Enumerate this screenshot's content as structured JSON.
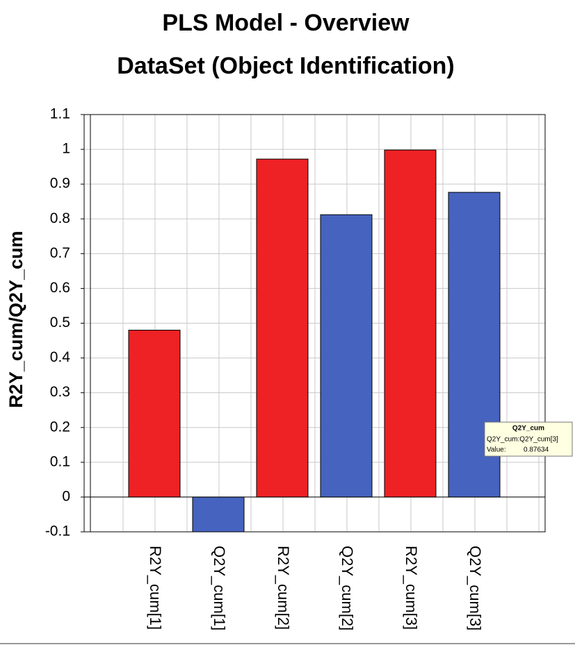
{
  "chart_data": {
    "type": "bar",
    "title": "PLS Model - Overview",
    "subtitle": "DataSet (Object Identification)",
    "y_label": "R2Y_cum/Q2Y_cum",
    "categories": [
      "R2Y_cum[1]",
      "Q2Y_cum[1]",
      "R2Y_cum[2]",
      "Q2Y_cum[2]",
      "R2Y_cum[3]",
      "Q2Y_cum[3]"
    ],
    "values": [
      0.48,
      -0.1,
      0.972,
      0.812,
      0.998,
      0.87634
    ],
    "colors": [
      "#ee2124",
      "#4563bf",
      "#ee2124",
      "#4563bf",
      "#ee2124",
      "#4563bf"
    ],
    "ylim": [
      -0.1,
      1.1
    ],
    "yticks": [
      -0.1,
      0,
      0.1,
      0.2,
      0.3,
      0.4,
      0.5,
      0.6,
      0.7,
      0.8,
      0.9,
      1,
      1.1
    ],
    "grid": true,
    "tooltip": {
      "title": "Q2Y_cum",
      "label": "Q2Y_cum:Q2Y_cum[3]",
      "value_label": "Value:"
    }
  }
}
